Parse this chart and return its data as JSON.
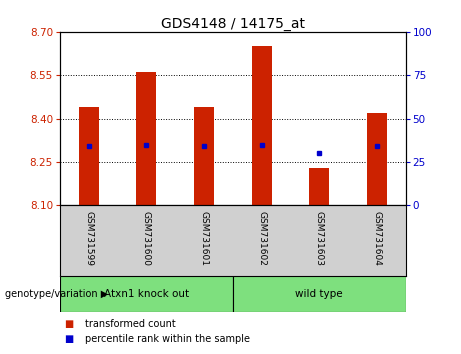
{
  "title": "GDS4148 / 14175_at",
  "samples": [
    "GSM731599",
    "GSM731600",
    "GSM731601",
    "GSM731602",
    "GSM731603",
    "GSM731604"
  ],
  "bar_tops": [
    8.44,
    8.56,
    8.44,
    8.65,
    8.23,
    8.42
  ],
  "bar_bottom": 8.1,
  "percentile_values": [
    8.305,
    8.31,
    8.305,
    8.31,
    8.28,
    8.305
  ],
  "ylim": [
    8.1,
    8.7
  ],
  "yticks_left": [
    8.1,
    8.25,
    8.4,
    8.55,
    8.7
  ],
  "yticks_right": [
    0,
    25,
    50,
    75,
    100
  ],
  "bar_color": "#CC2200",
  "dot_color": "#0000CC",
  "bg_color": "#D0D0D0",
  "plot_bg": "#FFFFFF",
  "light_green": "#7EE07E",
  "group_configs": [
    {
      "start": 0,
      "end": 2,
      "label": "Atxn1 knock out"
    },
    {
      "start": 3,
      "end": 5,
      "label": "wild type"
    }
  ],
  "legend_items": [
    {
      "label": "transformed count",
      "color": "#CC2200"
    },
    {
      "label": "percentile rank within the sample",
      "color": "#0000CC"
    }
  ],
  "group_label_prefix": "genotype/variation"
}
